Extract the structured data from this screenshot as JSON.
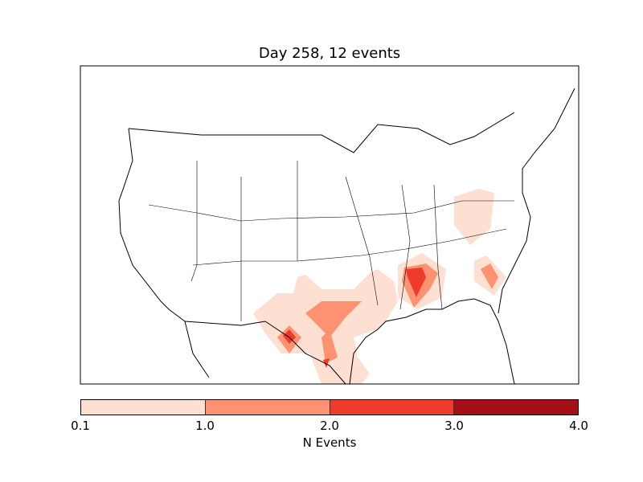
{
  "title": "Day 258, 12 events",
  "colorbar": {
    "label": "N Events",
    "ticks": [
      "0.1",
      "1.0",
      "2.0",
      "3.0",
      "4.0"
    ],
    "levels": [
      0.1,
      1.0,
      2.0,
      3.0,
      4.0
    ],
    "colors": [
      "#fee0d2",
      "#fc9272",
      "#ef3b2c",
      "#a50f15"
    ]
  },
  "map": {
    "region": "Continental United States",
    "layer": "filled contours of event density",
    "hotspots": [
      {
        "area": "Mississippi",
        "max_level": "2.0-3.0"
      },
      {
        "area": "West Texas / Big Bend",
        "max_level": "2.0-3.0"
      },
      {
        "area": "South Texas",
        "max_level": "2.0-3.0"
      },
      {
        "area": "Central Texas",
        "max_level": "1.0-2.0"
      },
      {
        "area": "South Carolina / Georgia coast",
        "max_level": "1.0-2.0"
      },
      {
        "area": "Virginia / North Carolina",
        "max_level": "0.1-1.0"
      }
    ]
  }
}
